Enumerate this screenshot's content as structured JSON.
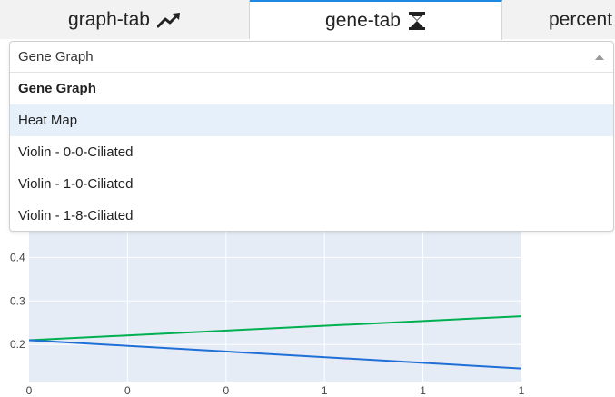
{
  "tabs": [
    {
      "label": "graph-tab",
      "icon": "trending-up-icon",
      "active": false
    },
    {
      "label": "gene-tab",
      "icon": "hourglass-dna-icon",
      "active": true
    },
    {
      "label": "percent",
      "icon": "",
      "active": false
    }
  ],
  "dropdown": {
    "value": "Gene Graph",
    "options": [
      {
        "label": "Gene Graph",
        "selected": true,
        "hover": false
      },
      {
        "label": "Heat Map",
        "selected": false,
        "hover": true
      },
      {
        "label": "Violin - 0-0-Ciliated",
        "selected": false,
        "hover": false
      },
      {
        "label": "Violin - 1-0-Ciliated",
        "selected": false,
        "hover": false
      },
      {
        "label": "Violin - 1-8-Ciliated",
        "selected": false,
        "hover": false
      }
    ]
  },
  "colors": {
    "accent": "#1e88e5",
    "plot_bg": "#e5ecf6",
    "series_green": "#00b050",
    "series_blue": "#1f6fd6"
  },
  "chart_data": {
    "type": "line",
    "x_tick_labels": [
      "0",
      "0",
      "0",
      "1",
      "1",
      "1"
    ],
    "y_tick_labels": [
      "0.2",
      "0.3",
      "0.4"
    ],
    "ylim": [
      0.115,
      0.48
    ],
    "grid": true,
    "series": [
      {
        "color": "#00b050",
        "x": [
          0,
          1
        ],
        "y": [
          0.21,
          0.265
        ]
      },
      {
        "color": "#1f6fd6",
        "x": [
          0,
          1
        ],
        "y": [
          0.21,
          0.145
        ]
      }
    ]
  }
}
